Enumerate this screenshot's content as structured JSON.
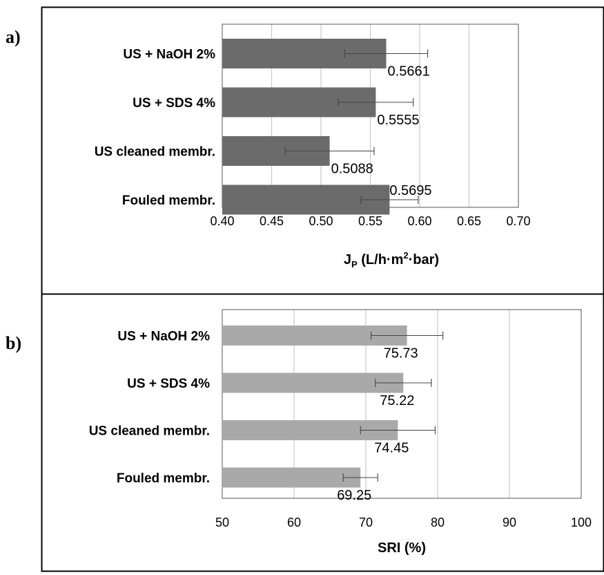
{
  "chart_data": [
    {
      "panel": "a)",
      "type": "bar",
      "orientation": "horizontal",
      "categories": [
        "US + NaOH 2%",
        "US + SDS 4%",
        "US cleaned membr.",
        "Fouled membr."
      ],
      "values": [
        0.5661,
        0.5555,
        0.5088,
        0.5695
      ],
      "value_labels": [
        "0.5661",
        "0.5555",
        "0.5088",
        "0.5695"
      ],
      "error": [
        0.042,
        0.038,
        0.045,
        0.029
      ],
      "xlabel": {
        "main": "J",
        "sub": "P",
        "unit_pre": " (L/h·m",
        "sup": "2",
        "unit_post": "·bar)"
      },
      "xlim": [
        0.4,
        0.7
      ],
      "xticks": [
        "0.40",
        "0.45",
        "0.50",
        "0.55",
        "0.60",
        "0.65",
        "0.70"
      ],
      "grid": "vertical",
      "bar_color": "#6b6b6b"
    },
    {
      "panel": "b)",
      "type": "bar",
      "orientation": "horizontal",
      "categories": [
        "US + NaOH 2%",
        "US + SDS 4%",
        "US cleaned membr.",
        "Fouled membr."
      ],
      "values": [
        75.73,
        75.22,
        74.45,
        69.25
      ],
      "value_labels": [
        "75.73",
        "75.22",
        "74.45",
        "69.25"
      ],
      "error": [
        5.0,
        3.9,
        5.2,
        2.4
      ],
      "xlabel": "SRI (%)",
      "xlim": [
        50,
        100
      ],
      "xticks": [
        "50",
        "60",
        "70",
        "80",
        "90",
        "100"
      ],
      "grid": "vertical",
      "bar_color": "#a9a9a9"
    }
  ]
}
